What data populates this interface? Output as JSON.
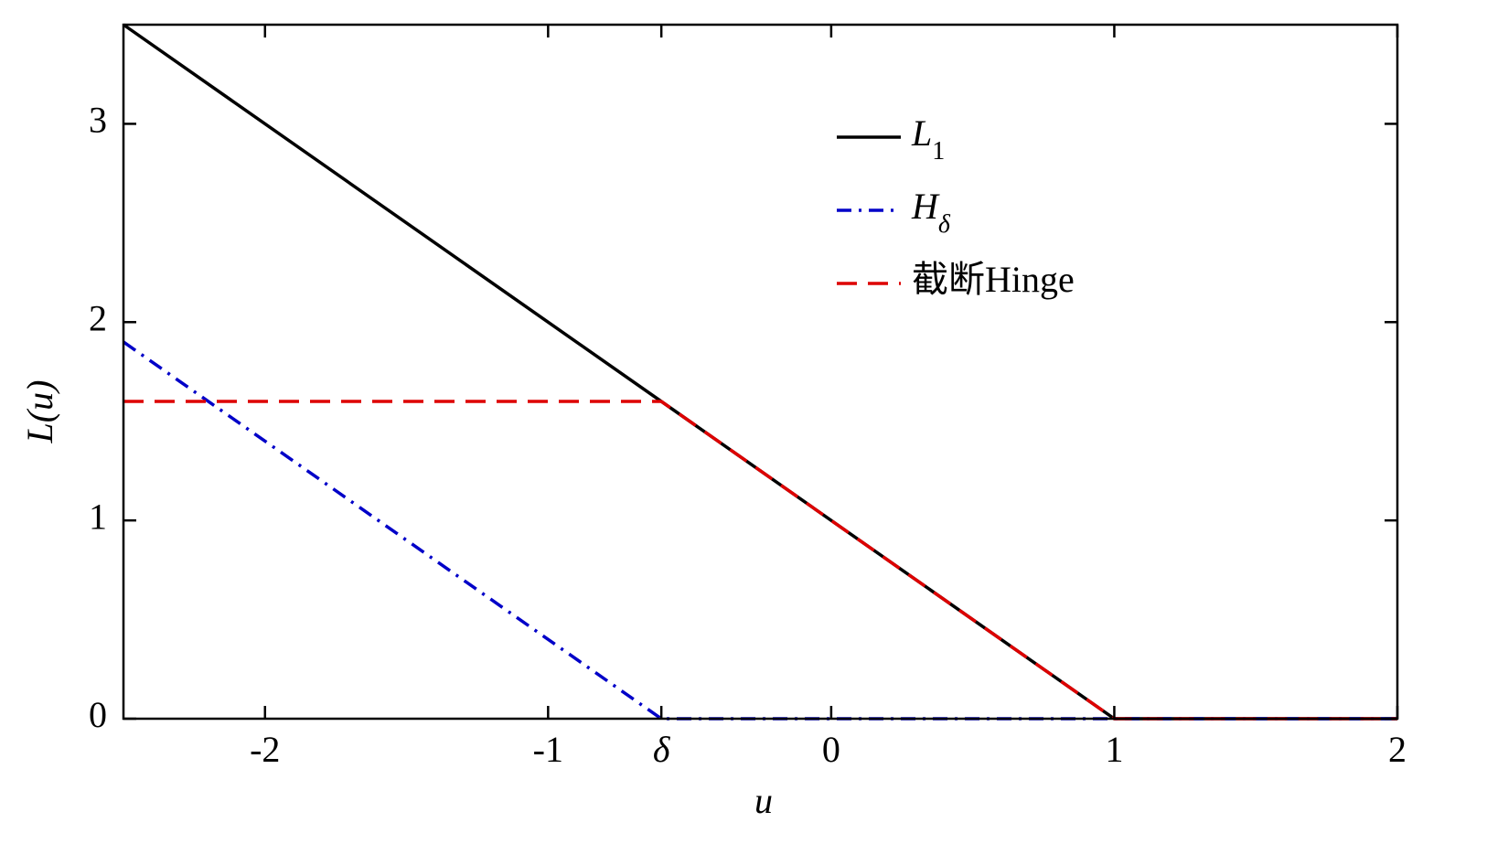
{
  "chart_data": {
    "type": "line",
    "xlabel": "u",
    "ylabel": "L(u)",
    "xlim": [
      -2.5,
      2
    ],
    "ylim": [
      0,
      3.5
    ],
    "xticks": [
      -2,
      -1,
      {
        "value": -0.6,
        "label": "δ"
      },
      0,
      1,
      2
    ],
    "yticks": [
      0,
      1,
      2,
      3
    ],
    "grid": false,
    "legend": "upper right",
    "series": [
      {
        "name": "L1",
        "color": "#000000",
        "dash": "solid",
        "x": [
          -2.5,
          1,
          2
        ],
        "values": [
          3.5,
          0,
          0
        ]
      },
      {
        "name": "Hδ",
        "color": "#0000c8",
        "dash": "dashdot",
        "x": [
          -2.5,
          -0.6,
          2
        ],
        "values": [
          1.9,
          0,
          0
        ]
      },
      {
        "name": "截断Hinge",
        "color": "#dd0000",
        "dash": "dashed",
        "x": [
          -2.5,
          -0.6,
          1,
          2
        ],
        "values": [
          1.6,
          1.6,
          0,
          0
        ]
      }
    ]
  }
}
